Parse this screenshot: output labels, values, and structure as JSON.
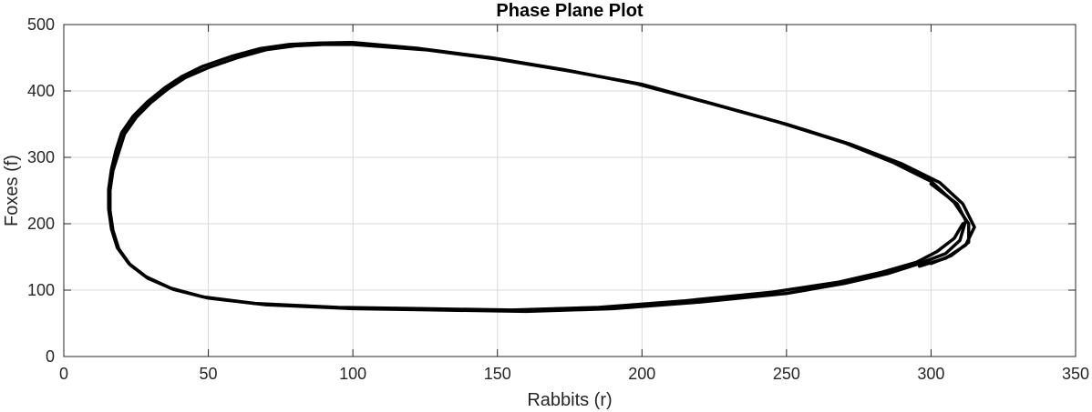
{
  "chart_data": {
    "type": "line",
    "title": "Phase Plane Plot",
    "xlabel": "Rabbits (r)",
    "ylabel": "Foxes (f)",
    "xlim": [
      0,
      350
    ],
    "ylim": [
      0,
      500
    ],
    "xticks": [
      0,
      50,
      100,
      150,
      200,
      250,
      300,
      350
    ],
    "yticks": [
      0,
      100,
      200,
      300,
      400,
      500
    ],
    "xtick_labels": [
      "0",
      "50",
      "100",
      "150",
      "200",
      "250",
      "300",
      "350"
    ],
    "ytick_labels": [
      "0",
      "100",
      "200",
      "300",
      "400",
      "500"
    ],
    "grid": true,
    "legend": null,
    "line_color": "#000000",
    "grid_color": "#d9d9d9",
    "series": [
      {
        "x": [
          296,
          305,
          312,
          315,
          311,
          303,
          290,
          272,
          250,
          225,
          200,
          175,
          150,
          125,
          100,
          90,
          80,
          70,
          60,
          50,
          42,
          36,
          30,
          25,
          21,
          19,
          17,
          16,
          16,
          17,
          19,
          23,
          29,
          38,
          50,
          70,
          100,
          130,
          160,
          190,
          220,
          250,
          270,
          285,
          296,
          305,
          310,
          312,
          309,
          300
        ],
        "y": [
          136,
          148,
          168,
          195,
          230,
          262,
          290,
          320,
          350,
          380,
          410,
          430,
          448,
          462,
          470,
          470,
          468,
          462,
          450,
          435,
          420,
          403,
          382,
          360,
          335,
          308,
          280,
          250,
          220,
          190,
          162,
          138,
          118,
          101,
          88,
          78,
          72,
          70,
          68,
          72,
          82,
          95,
          110,
          125,
          140,
          155,
          175,
          205,
          230,
          260
        ]
      },
      {
        "x": [
          300,
          307,
          313,
          313,
          308,
          300,
          287,
          270,
          248,
          223,
          198,
          173,
          148,
          123,
          100,
          88,
          78,
          68,
          58,
          48,
          41,
          35,
          29,
          24,
          20,
          18,
          16.5,
          15.5,
          15.5,
          16.5,
          18.5,
          22.5,
          28.5,
          37,
          48,
          66,
          95,
          125,
          155,
          185,
          215,
          245,
          268,
          283,
          295,
          302,
          308,
          311
        ],
        "y": [
          140,
          152,
          172,
          200,
          232,
          264,
          292,
          322,
          352,
          382,
          411,
          432,
          450,
          464,
          473,
          472,
          470,
          464,
          452,
          437,
          422,
          405,
          384,
          362,
          337,
          310,
          282,
          252,
          222,
          192,
          164,
          140,
          120,
          103,
          90,
          80,
          74,
          72,
          70,
          74,
          84,
          97,
          112,
          127,
          142,
          158,
          178,
          200
        ]
      }
    ]
  }
}
